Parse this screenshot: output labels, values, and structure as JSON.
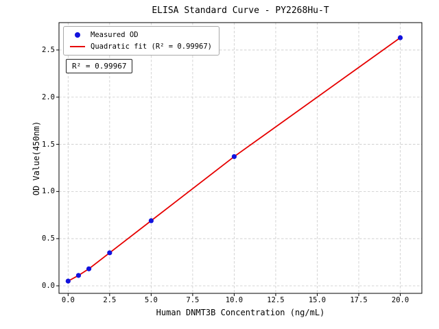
{
  "chart_data": {
    "type": "scatter",
    "title": "ELISA Standard Curve - PY2268Hu-T",
    "xlabel": "Human DNMT3B Concentration (ng/mL)",
    "ylabel": "OD Value(450nm)",
    "xlim": [
      -0.55,
      21.3
    ],
    "ylim": [
      -0.08,
      2.79
    ],
    "xticks": [
      0.0,
      2.5,
      5.0,
      7.5,
      10.0,
      12.5,
      15.0,
      17.5,
      20.0
    ],
    "yticks": [
      0.0,
      0.5,
      1.0,
      1.5,
      2.0,
      2.5
    ],
    "grid": true,
    "annotation": "R² = 0.99967",
    "legend": {
      "position": "upper-left",
      "entries": [
        {
          "label": "Measured OD",
          "marker": "dot",
          "color": "#1212dd"
        },
        {
          "label": "Quadratic fit (R² = 0.99967)",
          "marker": "line",
          "color": "#e60000"
        }
      ]
    },
    "series": [
      {
        "name": "Measured OD",
        "type": "scatter",
        "color": "#1212dd",
        "x": [
          0,
          0.625,
          1.25,
          2.5,
          5,
          10,
          20
        ],
        "y": [
          0.05,
          0.11,
          0.18,
          0.35,
          0.69,
          1.37,
          2.63
        ]
      },
      {
        "name": "Quadratic fit",
        "type": "line",
        "color": "#e60000",
        "x": [
          0,
          0.625,
          1.25,
          2.5,
          5,
          10,
          20
        ],
        "y": [
          0.05,
          0.11,
          0.18,
          0.35,
          0.69,
          1.37,
          2.63
        ]
      }
    ]
  }
}
